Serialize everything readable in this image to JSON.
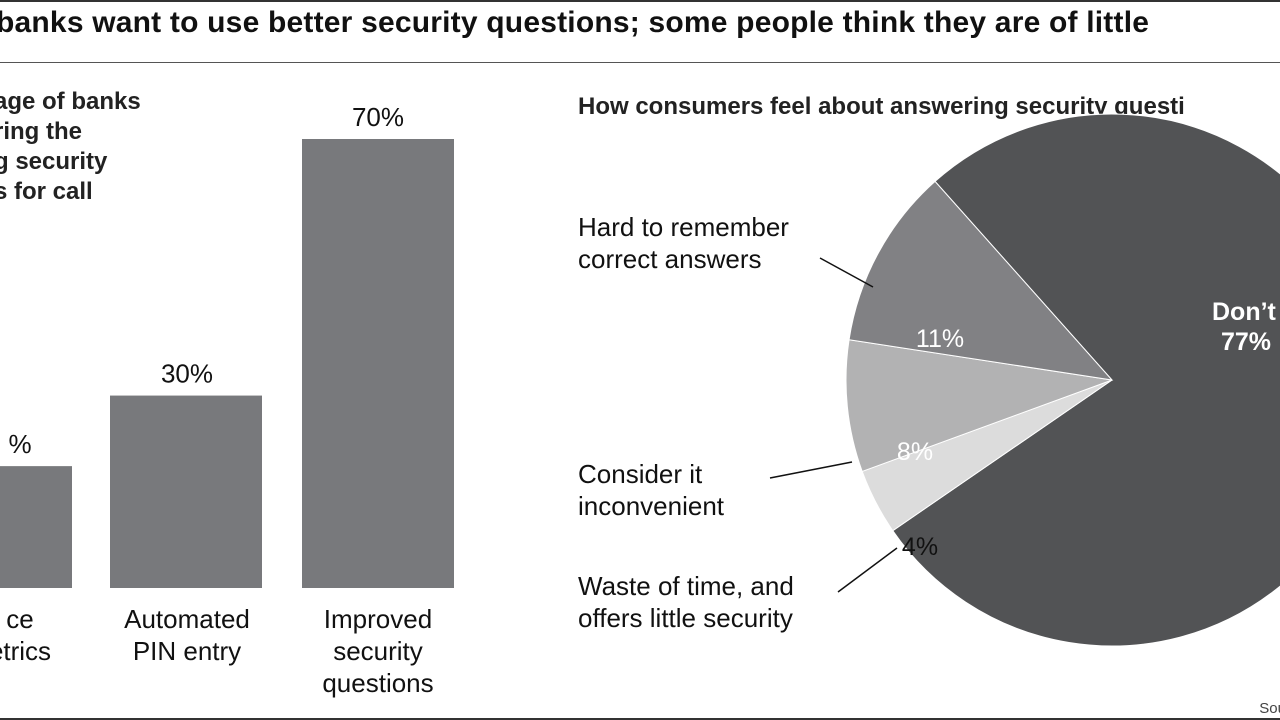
{
  "header": {
    "title": "banks want to use better security questions; some people think they are of little"
  },
  "chart_data": [
    {
      "type": "bar",
      "title": "age of banks\nring the\ng security\ns for call",
      "categories": [
        [
          "ce",
          "etrics"
        ],
        [
          "Automated",
          "PIN entry"
        ],
        [
          "Improved",
          "security",
          "questions"
        ]
      ],
      "values": [
        19,
        30,
        70
      ],
      "data_labels": [
        "%",
        "30%",
        "70%"
      ],
      "color": "#78797c",
      "ylim": [
        0,
        70
      ],
      "grid": false
    },
    {
      "type": "pie",
      "title": "How consumers feel about answering security questi",
      "slices": [
        {
          "label": "Don’t mi",
          "value": 77,
          "display": "77%",
          "color": "#525355"
        },
        {
          "label": "Waste of time, and\noffers little security",
          "value": 4,
          "display": "4%",
          "color": "#dcdcdc"
        },
        {
          "label": "Consider it\ninconvenient",
          "value": 8,
          "display": "8%",
          "color": "#b2b2b3"
        },
        {
          "label": "Hard to remember\ncorrect answers",
          "value": 11,
          "display": "11%",
          "color": "#818184"
        }
      ]
    }
  ],
  "footer": {
    "source": "Sou"
  }
}
